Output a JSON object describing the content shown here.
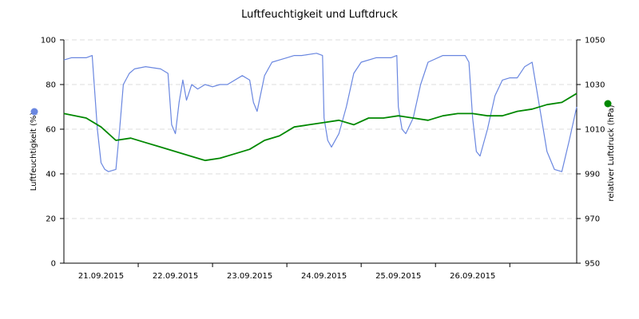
{
  "chart_data": {
    "type": "line",
    "title": "Luftfeuchtigkeit und Luftdruck",
    "x_tick_labels": [
      "21.09.2015",
      "22.09.2015",
      "23.09.2015",
      "24.09.2015",
      "25.09.2015",
      "26.09.2015"
    ],
    "xlim_days": [
      0,
      6.9
    ],
    "y_left": {
      "label": "Luftfeuchtigkeit (%)",
      "ylim": [
        0,
        100
      ],
      "ticks": [
        "0",
        "20",
        "40",
        "60",
        "80",
        "100"
      ]
    },
    "y_right": {
      "label": "relativer Luftdruck (hPa)",
      "ylim": [
        950,
        1050
      ],
      "ticks": [
        "950",
        "970",
        "990",
        "1010",
        "1030",
        "1050"
      ]
    },
    "grid": true,
    "legend": "axis-side markers",
    "series": [
      {
        "name": "Luftfeuchtigkeit (%)",
        "axis": "left",
        "color": "#6a87e0",
        "x": [
          0,
          0.1,
          0.3,
          0.38,
          0.45,
          0.5,
          0.55,
          0.6,
          0.7,
          0.75,
          0.8,
          0.88,
          0.95,
          1.1,
          1.3,
          1.4,
          1.45,
          1.5,
          1.55,
          1.6,
          1.65,
          1.72,
          1.8,
          1.9,
          2.0,
          2.1,
          2.2,
          2.4,
          2.5,
          2.55,
          2.6,
          2.7,
          2.8,
          2.9,
          3.0,
          3.1,
          3.2,
          3.4,
          3.48,
          3.5,
          3.55,
          3.6,
          3.7,
          3.8,
          3.9,
          4.0,
          4.2,
          4.4,
          4.48,
          4.5,
          4.55,
          4.6,
          4.7,
          4.8,
          4.9,
          5.1,
          5.3,
          5.4,
          5.45,
          5.5,
          5.55,
          5.6,
          5.7,
          5.8,
          5.9,
          6.0,
          6.1,
          6.2,
          6.3,
          6.4,
          6.5,
          6.6,
          6.7,
          6.8,
          6.9
        ],
        "values": [
          91,
          92,
          92,
          93,
          60,
          45,
          42,
          41,
          42,
          60,
          80,
          85,
          87,
          88,
          87,
          85,
          62,
          58,
          72,
          82,
          73,
          80,
          78,
          80,
          79,
          80,
          80,
          84,
          82,
          72,
          68,
          84,
          90,
          91,
          92,
          93,
          93,
          94,
          93,
          65,
          55,
          52,
          58,
          70,
          85,
          90,
          92,
          92,
          93,
          70,
          60,
          58,
          65,
          80,
          90,
          93,
          93,
          93,
          90,
          65,
          50,
          48,
          60,
          75,
          82,
          83,
          83,
          88,
          90,
          70,
          50,
          42,
          41,
          55,
          70
        ]
      },
      {
        "name": "relativer Luftdruck (hPa)",
        "axis": "right",
        "color": "#008800",
        "x": [
          0,
          0.3,
          0.5,
          0.7,
          0.9,
          1.1,
          1.3,
          1.5,
          1.7,
          1.9,
          2.1,
          2.3,
          2.5,
          2.7,
          2.9,
          3.1,
          3.3,
          3.5,
          3.7,
          3.9,
          4.1,
          4.3,
          4.5,
          4.7,
          4.9,
          5.1,
          5.3,
          5.5,
          5.7,
          5.9,
          6.1,
          6.3,
          6.5,
          6.7,
          6.9
        ],
        "values": [
          1017,
          1015,
          1011,
          1005,
          1006,
          1004,
          1002,
          1000,
          998,
          996,
          997,
          999,
          1001,
          1005,
          1007,
          1011,
          1012,
          1013,
          1014,
          1012,
          1015,
          1015,
          1016,
          1015,
          1014,
          1016,
          1017,
          1017,
          1016,
          1016,
          1018,
          1019,
          1021,
          1022,
          1026
        ]
      }
    ]
  }
}
